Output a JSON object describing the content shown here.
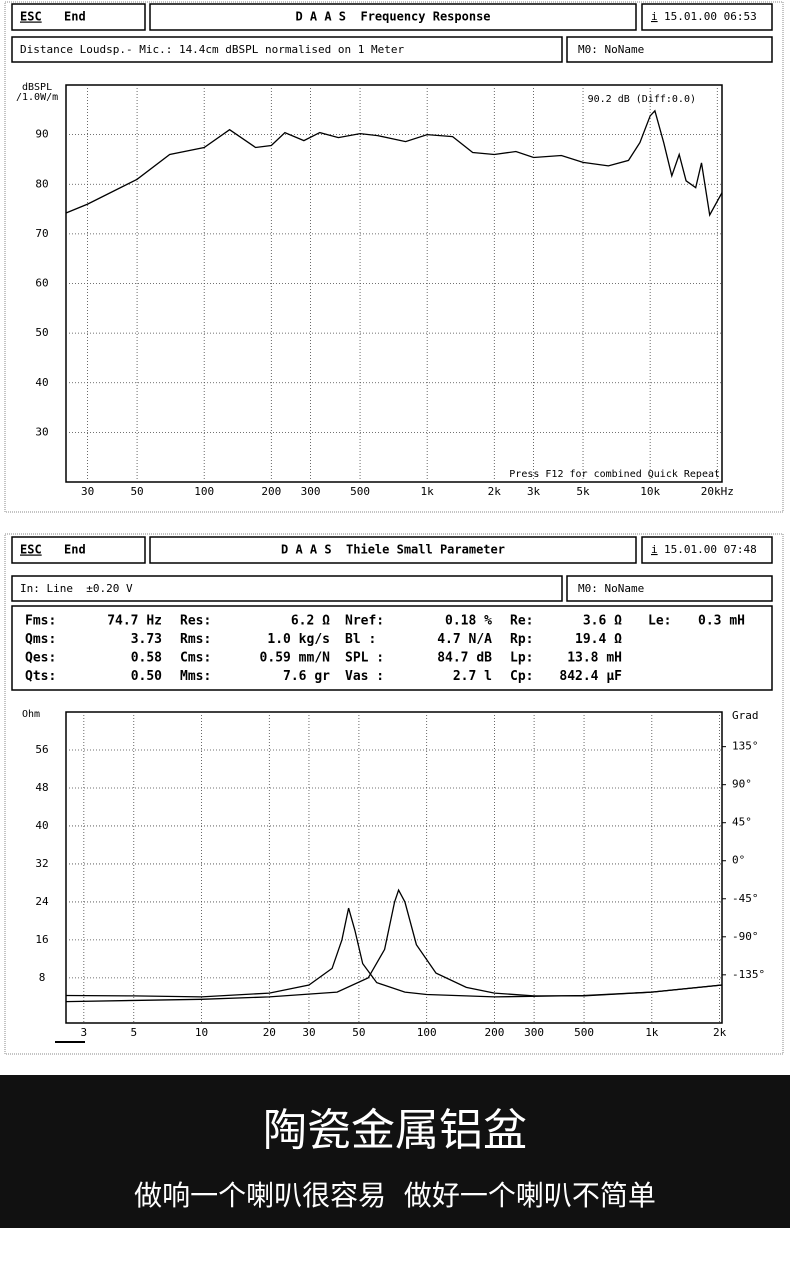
{
  "screens": [
    {
      "esc": "ESC",
      "esc_label": "End",
      "title": "D A A S  Frequency Response",
      "info": "i",
      "timestamp": "15.01.00 06:53",
      "status": "Distance Loudsp.- Mic.: 14.4cm dBSPL normalised on 1 Meter",
      "memory": "M0: NoName"
    },
    {
      "esc": "ESC",
      "esc_label": "End",
      "title": "D A A S  Thiele Small Parameter",
      "info": "i",
      "timestamp": "15.01.00 07:48",
      "status": "In: Line  ±0.20 V",
      "memory": "M0: NoName"
    }
  ],
  "parameters": {
    "rows": [
      [
        [
          "Fms:",
          "74.7 Hz"
        ],
        [
          "Res:",
          "6.2 Ω"
        ],
        [
          "Nref:",
          "0.18 %"
        ],
        [
          "Re:",
          "3.6 Ω"
        ],
        [
          "Le:",
          "0.3 mH"
        ]
      ],
      [
        [
          "Qms:",
          "3.73"
        ],
        [
          "Rms:",
          "1.0 kg/s"
        ],
        [
          "Bl :",
          "4.7 N/A"
        ],
        [
          "Rp:",
          "19.4 Ω"
        ]
      ],
      [
        [
          "Qes:",
          "0.58"
        ],
        [
          "Cms:",
          "0.59 mm/N"
        ],
        [
          "SPL :",
          "84.7 dB"
        ],
        [
          "Lp:",
          "13.8 mH"
        ]
      ],
      [
        [
          "Qts:",
          "0.50"
        ],
        [
          "Mms:",
          "7.6 gr"
        ],
        [
          "Vas :",
          "2.7 l"
        ],
        [
          "Cp:",
          "842.4 µF"
        ]
      ]
    ]
  },
  "chart_data": [
    {
      "type": "line",
      "xscale": "log",
      "grid": true,
      "ylabel": [
        "dBSPL",
        "/1.0W/m"
      ],
      "xlim": [
        24,
        21000
      ],
      "ylim": [
        20,
        100
      ],
      "xticks": [
        30,
        50,
        100,
        200,
        300,
        500,
        {
          "value": 1000,
          "label": "1k"
        },
        {
          "value": 2000,
          "label": "2k"
        },
        {
          "value": 3000,
          "label": "3k"
        },
        {
          "value": 5000,
          "label": "5k"
        },
        {
          "value": 10000,
          "label": "10k"
        },
        {
          "value": 20000,
          "label": "20kHz"
        }
      ],
      "yticks": [
        30,
        40,
        50,
        60,
        70,
        80,
        90
      ],
      "annotations": [
        "90.2 dB (Diff:0.0)",
        "Press F12 for combined Quick Repeat"
      ],
      "series": [
        {
          "color": "#000000",
          "x": [
            24,
            30,
            50,
            70,
            100,
            130,
            170,
            200,
            230,
            280,
            330,
            400,
            500,
            600,
            800,
            1000,
            1300,
            1600,
            2000,
            2500,
            3000,
            4000,
            5000,
            6500,
            8000,
            9000,
            10000,
            10500,
            11500,
            12500,
            13500,
            14500,
            16000,
            17000,
            18500,
            21000
          ],
          "values": [
            74.2,
            76,
            81,
            86,
            87.4,
            91,
            87.4,
            87.8,
            90.4,
            88.8,
            90.4,
            89.4,
            90.2,
            89.8,
            88.6,
            90,
            89.6,
            86.4,
            86,
            86.6,
            85.4,
            85.8,
            84.4,
            83.7,
            84.8,
            88.4,
            93.8,
            94.8,
            88.4,
            81.7,
            86,
            80.7,
            79.3,
            84.3,
            73.8,
            78.3
          ]
        }
      ]
    },
    {
      "type": "line",
      "xscale": "log",
      "grid": true,
      "ylabel": [
        "Ohm"
      ],
      "y2label": "Grad",
      "xlim": [
        2.5,
        2050
      ],
      "ylim": [
        -1.5,
        64
      ],
      "y2lim": [
        -192,
        176
      ],
      "xticks": [
        3,
        5,
        10,
        20,
        30,
        50,
        100,
        200,
        300,
        500,
        {
          "value": 1000,
          "label": "1k"
        },
        {
          "value": 2000,
          "label": "2k"
        }
      ],
      "yticks": [
        8,
        16,
        24,
        32,
        40,
        48,
        56
      ],
      "y2ticks": [
        {
          "value": -135,
          "label": "-135°"
        },
        {
          "value": -90,
          "label": "-90°"
        },
        {
          "value": -45,
          "label": "-45°"
        },
        {
          "value": 0,
          "label": "0°"
        },
        {
          "value": 45,
          "label": "45°"
        },
        {
          "value": 90,
          "label": "90°"
        },
        {
          "value": 135,
          "label": "135°"
        }
      ],
      "series": [
        {
          "color": "#000000",
          "x": [
            2.5,
            5,
            10,
            20,
            30,
            38,
            42,
            45,
            48,
            52,
            60,
            80,
            100,
            200,
            500,
            1000,
            2050
          ],
          "values": [
            4.3,
            4.2,
            4.0,
            4.8,
            6.5,
            10,
            16,
            22.7,
            18,
            11,
            7,
            5,
            4.5,
            4,
            4.3,
            5,
            6.5
          ]
        },
        {
          "color": "#000000",
          "x": [
            2.5,
            10,
            20,
            40,
            55,
            65,
            72,
            75,
            80,
            90,
            110,
            150,
            200,
            300,
            500,
            1000,
            2050
          ],
          "values": [
            3.0,
            3.5,
            4,
            5,
            8,
            14,
            24,
            26.5,
            24,
            15,
            9,
            6,
            4.8,
            4.2,
            4.2,
            5,
            6.5
          ]
        }
      ]
    }
  ],
  "banner": {
    "title": "陶瓷金属铝盆",
    "subtitle": "做响一个喇叭很容易  做好一个喇叭不简单"
  }
}
